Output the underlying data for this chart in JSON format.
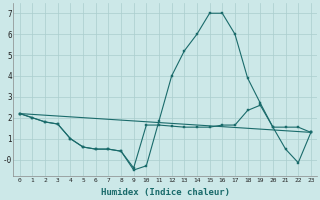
{
  "xlabel": "Humidex (Indice chaleur)",
  "x": [
    0,
    1,
    2,
    3,
    4,
    5,
    6,
    7,
    8,
    9,
    10,
    11,
    12,
    13,
    14,
    15,
    16,
    17,
    18,
    19,
    20,
    21,
    22,
    23
  ],
  "line1": [
    2.2,
    2.0,
    1.8,
    1.7,
    1.0,
    0.6,
    0.5,
    0.5,
    0.4,
    -0.5,
    -0.3,
    1.85,
    4.0,
    5.2,
    6.0,
    7.0,
    7.0,
    6.0,
    3.9,
    2.7,
    1.55,
    0.5,
    -0.15,
    1.3
  ],
  "line2": [
    2.2,
    2.0,
    1.8,
    1.7,
    1.0,
    0.6,
    0.5,
    0.5,
    0.4,
    -0.4,
    1.65,
    1.65,
    1.6,
    1.55,
    1.55,
    1.55,
    1.65,
    1.65,
    2.35,
    2.6,
    1.55,
    1.55,
    1.55,
    1.3
  ],
  "line3_x": [
    0,
    23
  ],
  "line3_y": [
    2.2,
    1.3
  ],
  "background_color": "#cce8e8",
  "grid_color": "#aacece",
  "line_color": "#1a6b6b",
  "ylim": [
    -0.8,
    7.5
  ],
  "xlim": [
    -0.5,
    23.5
  ],
  "yticks": [
    0,
    1,
    2,
    3,
    4,
    5,
    6,
    7
  ],
  "ytick_labels": [
    "-0",
    "1",
    "2",
    "3",
    "4",
    "5",
    "6",
    "7"
  ]
}
